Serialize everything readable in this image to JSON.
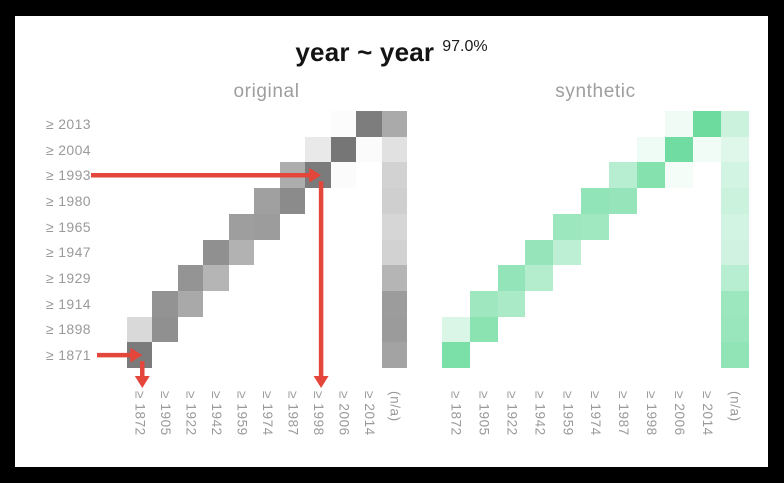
{
  "title": {
    "text": "year ~ year",
    "accuracy": "97.0%"
  },
  "panels": [
    {
      "label": "original"
    },
    {
      "label": "synthetic"
    }
  ],
  "colors": {
    "frame_background": "#000000",
    "panel_background": "#ffffff",
    "title_text": "#141414",
    "muted_text": "#9a9a9a",
    "annotation_red": "#e4463b",
    "original_max": "#767676",
    "synthetic_max": "#60d896"
  },
  "chart_data": {
    "type": "heatmap",
    "title": "year ~ year",
    "accuracy_label": "97.0%",
    "row_order": "top-to-bottom",
    "intensity_scale": "0 = white (no density), 1 = strongest cell color",
    "row_labels": [
      "≥ 2013",
      "≥ 2004",
      "≥ 1993",
      "≥ 1980",
      "≥ 1965",
      "≥ 1947",
      "≥ 1929",
      "≥ 1914",
      "≥ 1898",
      "≥ 1871"
    ],
    "col_labels": [
      "≥ 1872",
      "≥ 1905",
      "≥ 1922",
      "≥ 1942",
      "≥ 1959",
      "≥ 1974",
      "≥ 1987",
      "≥ 1998",
      "≥ 2006",
      "≥ 2014",
      "(n/a)"
    ],
    "series": [
      {
        "name": "original",
        "palette_max": "#767676",
        "cells": [
          [
            0,
            0,
            0,
            0,
            0,
            0,
            0,
            0,
            0.02,
            0.95,
            0.62
          ],
          [
            0,
            0,
            0,
            0,
            0,
            0,
            0,
            0.16,
            1.0,
            0.03,
            0.22
          ],
          [
            0,
            0,
            0,
            0,
            0,
            0,
            0.6,
            0.96,
            0.03,
            0,
            0.33
          ],
          [
            0,
            0,
            0,
            0,
            0,
            0.69,
            0.85,
            0,
            0,
            0,
            0.35
          ],
          [
            0,
            0,
            0,
            0,
            0.71,
            0.72,
            0,
            0,
            0,
            0,
            0.3
          ],
          [
            0,
            0,
            0,
            0.81,
            0.56,
            0,
            0,
            0,
            0,
            0,
            0.33
          ],
          [
            0,
            0,
            0.78,
            0.54,
            0,
            0,
            0,
            0,
            0,
            0,
            0.54
          ],
          [
            0,
            0.79,
            0.63,
            0,
            0,
            0,
            0,
            0,
            0,
            0,
            0.72
          ],
          [
            0.28,
            0.81,
            0,
            0,
            0,
            0,
            0,
            0,
            0,
            0,
            0.73
          ],
          [
            0.96,
            0,
            0,
            0,
            0,
            0,
            0,
            0,
            0,
            0,
            0.67
          ]
        ]
      },
      {
        "name": "synthetic",
        "palette_max": "#60d896",
        "cells": [
          [
            0,
            0,
            0,
            0,
            0,
            0,
            0,
            0,
            0.09,
            0.92,
            0.33
          ],
          [
            0,
            0,
            0,
            0,
            0,
            0,
            0,
            0.1,
            0.9,
            0.08,
            0.2
          ],
          [
            0,
            0,
            0,
            0,
            0,
            0,
            0.45,
            0.77,
            0.06,
            0,
            0.28
          ],
          [
            0,
            0,
            0,
            0,
            0,
            0.69,
            0.66,
            0,
            0,
            0,
            0.33
          ],
          [
            0,
            0,
            0,
            0,
            0.62,
            0.6,
            0,
            0,
            0,
            0,
            0.28
          ],
          [
            0,
            0,
            0,
            0.66,
            0.42,
            0,
            0,
            0,
            0,
            0,
            0.3
          ],
          [
            0,
            0,
            0.68,
            0.47,
            0,
            0,
            0,
            0,
            0,
            0,
            0.45
          ],
          [
            0,
            0.61,
            0.53,
            0,
            0,
            0,
            0,
            0,
            0,
            0,
            0.62
          ],
          [
            0.24,
            0.73,
            0,
            0,
            0,
            0,
            0,
            0,
            0,
            0,
            0.64
          ],
          [
            0.83,
            0,
            0,
            0,
            0,
            0,
            0,
            0,
            0,
            0,
            0.7
          ]
        ]
      }
    ],
    "annotations": {
      "color": "#e4463b",
      "arrows": [
        {
          "name": "arrow-row-1993",
          "orientation": "horizontal",
          "from_row_label": "≥ 1993",
          "points_to_col_label": "≥ 1998",
          "row_index": 2,
          "col_index": 7
        },
        {
          "name": "arrow-col-1998",
          "orientation": "vertical",
          "col_index": 7,
          "from_row_index": 2,
          "points_to_col_label": "≥ 1998"
        },
        {
          "name": "arrow-row-1871",
          "orientation": "horizontal",
          "from_row_label": "≥ 1871",
          "points_to_col_label": "≥ 1872",
          "row_index": 9,
          "col_index": 0
        },
        {
          "name": "arrow-col-1872",
          "orientation": "vertical",
          "col_index": 0,
          "from_row_index": 9,
          "points_to_col_label": "≥ 1872"
        }
      ]
    }
  }
}
